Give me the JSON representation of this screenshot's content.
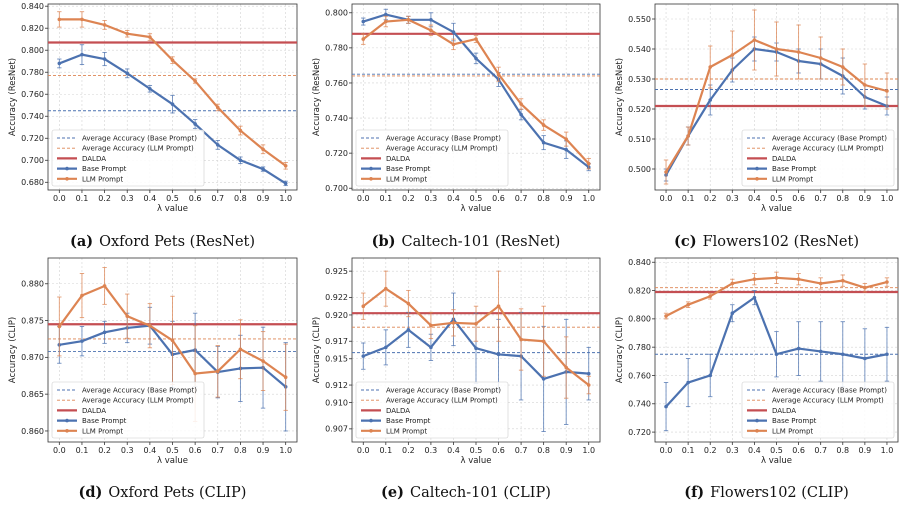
{
  "colors": {
    "base": "#4c72b0",
    "llm": "#dd8452",
    "dalda": "#c44e52",
    "grid": "#d3d3d3",
    "axis": "#333333"
  },
  "legend": {
    "avg_base": "Average Accuracy (Base Prompt)",
    "avg_llm": "Average Accuracy (LLM Prompt)",
    "dalda": "DALDA",
    "base": "Base Prompt",
    "llm": "LLM Prompt"
  },
  "chart_data": [
    {
      "type": "line",
      "caption_tag": "(a)",
      "caption_text": "Oxford Pets (ResNet)",
      "xlabel": "λ value",
      "ylabel": "Accuracy (ResNet)",
      "x": [
        0.0,
        0.1,
        0.2,
        0.3,
        0.4,
        0.5,
        0.6,
        0.7,
        0.8,
        0.9,
        1.0
      ],
      "x_ticks": [
        "0.0",
        "0.1",
        "0.2",
        "0.3",
        "0.4",
        "0.5",
        "0.6",
        "0.7",
        "0.8",
        "0.9",
        "1.0"
      ],
      "ylim": [
        0.673,
        0.842
      ],
      "y_ticks": [
        0.68,
        0.7,
        0.72,
        0.74,
        0.76,
        0.78,
        0.8,
        0.82,
        0.84
      ],
      "y_tick_labels": [
        "0.680",
        "0.700",
        "0.720",
        "0.740",
        "0.760",
        "0.780",
        "0.800",
        "0.820",
        "0.840"
      ],
      "dalda": 0.807,
      "avg_base": 0.745,
      "avg_llm": 0.777,
      "series": [
        {
          "name": "Base Prompt",
          "values": [
            0.788,
            0.796,
            0.792,
            0.779,
            0.765,
            0.751,
            0.733,
            0.714,
            0.7,
            0.692,
            0.679
          ],
          "err": [
            0.004,
            0.009,
            0.006,
            0.004,
            0.003,
            0.008,
            0.004,
            0.004,
            0.003,
            0.002,
            0.002
          ]
        },
        {
          "name": "LLM Prompt",
          "values": [
            0.828,
            0.828,
            0.823,
            0.815,
            0.812,
            0.791,
            0.772,
            0.748,
            0.727,
            0.71,
            0.695
          ],
          "err": [
            0.007,
            0.007,
            0.004,
            0.003,
            0.003,
            0.003,
            0.002,
            0.003,
            0.004,
            0.004,
            0.003
          ]
        }
      ],
      "legend_position": "lower-left"
    },
    {
      "type": "line",
      "caption_tag": "(b)",
      "caption_text": "Caltech-101 (ResNet)",
      "xlabel": "λ value",
      "ylabel": "Accuracy (ResNet)",
      "x": [
        0.0,
        0.1,
        0.2,
        0.3,
        0.4,
        0.5,
        0.6,
        0.7,
        0.8,
        0.9,
        1.0
      ],
      "x_ticks": [
        "0.0",
        "0.1",
        "0.2",
        "0.3",
        "0.4",
        "0.5",
        "0.6",
        "0.7",
        "0.8",
        "0.9",
        "1.0"
      ],
      "ylim": [
        0.699,
        0.805
      ],
      "y_ticks": [
        0.7,
        0.72,
        0.74,
        0.76,
        0.78,
        0.8
      ],
      "y_tick_labels": [
        "0.700",
        "0.720",
        "0.740",
        "0.760",
        "0.780",
        "0.800"
      ],
      "dalda": 0.788,
      "avg_base": 0.765,
      "avg_llm": 0.764,
      "series": [
        {
          "name": "Base Prompt",
          "values": [
            0.795,
            0.799,
            0.796,
            0.796,
            0.789,
            0.774,
            0.762,
            0.742,
            0.726,
            0.722,
            0.712
          ],
          "err": [
            0.002,
            0.003,
            0.002,
            0.004,
            0.005,
            0.003,
            0.004,
            0.003,
            0.004,
            0.005,
            0.002
          ]
        },
        {
          "name": "LLM Prompt",
          "values": [
            0.785,
            0.795,
            0.796,
            0.79,
            0.782,
            0.785,
            0.765,
            0.748,
            0.736,
            0.728,
            0.714
          ],
          "err": [
            0.003,
            0.003,
            0.002,
            0.003,
            0.003,
            0.002,
            0.004,
            0.003,
            0.003,
            0.004,
            0.003
          ]
        }
      ],
      "legend_position": "lower-left"
    },
    {
      "type": "line",
      "caption_tag": "(c)",
      "caption_text": "Flowers102 (ResNet)",
      "xlabel": "λ value",
      "ylabel": "Accuracy (ResNet)",
      "x": [
        0.0,
        0.1,
        0.2,
        0.3,
        0.4,
        0.5,
        0.6,
        0.7,
        0.8,
        0.9,
        1.0
      ],
      "x_ticks": [
        "0.0",
        "0.1",
        "0.2",
        "0.3",
        "0.4",
        "0.5",
        "0.6",
        "0.7",
        "0.8",
        "0.9",
        "1.0"
      ],
      "ylim": [
        0.493,
        0.555
      ],
      "y_ticks": [
        0.5,
        0.51,
        0.52,
        0.53,
        0.54,
        0.55
      ],
      "y_tick_labels": [
        "0.500",
        "0.510",
        "0.520",
        "0.530",
        "0.540",
        "0.550"
      ],
      "dalda": 0.521,
      "avg_base": 0.5265,
      "avg_llm": 0.53,
      "series": [
        {
          "name": "Base Prompt",
          "values": [
            0.498,
            0.511,
            0.523,
            0.533,
            0.54,
            0.539,
            0.536,
            0.535,
            0.531,
            0.524,
            0.521
          ],
          "err": [
            0.002,
            0.003,
            0.005,
            0.004,
            0.004,
            0.003,
            0.004,
            0.005,
            0.006,
            0.004,
            0.003
          ]
        },
        {
          "name": "LLM Prompt",
          "values": [
            0.499,
            0.511,
            0.534,
            0.538,
            0.543,
            0.54,
            0.539,
            0.537,
            0.534,
            0.528,
            0.526
          ],
          "err": [
            0.004,
            0.003,
            0.007,
            0.008,
            0.01,
            0.009,
            0.009,
            0.007,
            0.006,
            0.007,
            0.006
          ]
        }
      ],
      "legend_position": "lower-right"
    },
    {
      "type": "line",
      "caption_tag": "(d)",
      "caption_text": "Oxford Pets (CLIP)",
      "xlabel": "λ value",
      "ylabel": "Accuracy (CLIP)",
      "x": [
        0.0,
        0.1,
        0.2,
        0.3,
        0.4,
        0.5,
        0.6,
        0.7,
        0.8,
        0.9,
        1.0
      ],
      "x_ticks": [
        "0.0",
        "0.1",
        "0.2",
        "0.3",
        "0.4",
        "0.5",
        "0.6",
        "0.7",
        "0.8",
        "0.9",
        "1.0"
      ],
      "ylim": [
        0.8585,
        0.8835
      ],
      "y_ticks": [
        0.86,
        0.865,
        0.87,
        0.875,
        0.88
      ],
      "y_tick_labels": [
        "0.860",
        "0.865",
        "0.870",
        "0.875",
        "0.880"
      ],
      "dalda": 0.8745,
      "avg_base": 0.8708,
      "avg_llm": 0.8725,
      "series": [
        {
          "name": "Base Prompt",
          "values": [
            0.8717,
            0.8722,
            0.8734,
            0.874,
            0.8743,
            0.8704,
            0.871,
            0.868,
            0.8685,
            0.8686,
            0.866
          ],
          "err": [
            0.0025,
            0.002,
            0.0015,
            0.002,
            0.0025,
            0.0045,
            0.005,
            0.0035,
            0.0045,
            0.0055,
            0.006
          ]
        },
        {
          "name": "LLM Prompt",
          "values": [
            0.8742,
            0.8784,
            0.8797,
            0.8756,
            0.8743,
            0.8723,
            0.8678,
            0.8681,
            0.8711,
            0.8695,
            0.8673
          ],
          "err": [
            0.004,
            0.003,
            0.0025,
            0.003,
            0.003,
            0.006,
            0.0065,
            0.0035,
            0.004,
            0.004,
            0.0045
          ]
        }
      ],
      "legend_position": "lower-left"
    },
    {
      "type": "line",
      "caption_tag": "(e)",
      "caption_text": "Caltech-101 (CLIP)",
      "xlabel": "λ value",
      "ylabel": "Accuracy (CLIP)",
      "x": [
        0.0,
        0.1,
        0.2,
        0.3,
        0.4,
        0.5,
        0.6,
        0.7,
        0.8,
        0.9,
        1.0
      ],
      "x_ticks": [
        "0.0",
        "0.1",
        "0.2",
        "0.3",
        "0.4",
        "0.5",
        "0.6",
        "0.7",
        "0.8",
        "0.9",
        "1.0"
      ],
      "ylim": [
        0.9055,
        0.9265
      ],
      "y_ticks": [
        0.907,
        0.91,
        0.912,
        0.915,
        0.917,
        0.92,
        0.922,
        0.925
      ],
      "y_tick_labels": [
        "0.907",
        "0.910",
        "0.912",
        "0.915",
        "0.917",
        "0.920",
        "0.922",
        "0.925"
      ],
      "dalda": 0.9202,
      "avg_base": 0.9157,
      "avg_llm": 0.9186,
      "series": [
        {
          "name": "Base Prompt",
          "values": [
            0.9153,
            0.9163,
            0.9183,
            0.9163,
            0.9195,
            0.9162,
            0.9155,
            0.9153,
            0.9127,
            0.9135,
            0.9133
          ],
          "err": [
            0.0015,
            0.002,
            0.002,
            0.0015,
            0.003,
            0.004,
            0.004,
            0.005,
            0.006,
            0.006,
            0.003
          ]
        },
        {
          "name": "LLM Prompt",
          "values": [
            0.921,
            0.923,
            0.9213,
            0.9188,
            0.9191,
            0.919,
            0.921,
            0.9172,
            0.917,
            0.914,
            0.912
          ],
          "err": [
            0.0015,
            0.002,
            0.0015,
            0.0015,
            0.0015,
            0.002,
            0.004,
            0.0035,
            0.004,
            0.0035,
            0.001
          ]
        }
      ],
      "legend_position": "lower-left"
    },
    {
      "type": "line",
      "caption_tag": "(f)",
      "caption_text": "Flowers102 (CLIP)",
      "xlabel": "λ value",
      "ylabel": "Accuracy (CLIP)",
      "x": [
        0.0,
        0.1,
        0.2,
        0.3,
        0.4,
        0.5,
        0.6,
        0.7,
        0.8,
        0.9,
        1.0
      ],
      "x_ticks": [
        "0.0",
        "0.1",
        "0.2",
        "0.3",
        "0.4",
        "0.5",
        "0.6",
        "0.7",
        "0.8",
        "0.9",
        "1.0"
      ],
      "ylim": [
        0.713,
        0.843
      ],
      "y_ticks": [
        0.72,
        0.74,
        0.76,
        0.78,
        0.8,
        0.82,
        0.84
      ],
      "y_tick_labels": [
        "0.720",
        "0.740",
        "0.760",
        "0.780",
        "0.800",
        "0.820",
        "0.840"
      ],
      "dalda": 0.819,
      "avg_base": 0.775,
      "avg_llm": 0.822,
      "series": [
        {
          "name": "Base Prompt",
          "values": [
            0.738,
            0.755,
            0.76,
            0.804,
            0.815,
            0.775,
            0.779,
            0.777,
            0.775,
            0.772,
            0.775
          ],
          "err": [
            0.017,
            0.017,
            0.015,
            0.006,
            0.005,
            0.016,
            0.019,
            0.021,
            0.023,
            0.021,
            0.019
          ]
        },
        {
          "name": "LLM Prompt",
          "values": [
            0.802,
            0.81,
            0.816,
            0.825,
            0.828,
            0.829,
            0.828,
            0.825,
            0.827,
            0.822,
            0.826
          ],
          "err": [
            0.002,
            0.002,
            0.002,
            0.003,
            0.004,
            0.004,
            0.004,
            0.004,
            0.004,
            0.003,
            0.003
          ]
        }
      ],
      "legend_position": "lower-right"
    }
  ]
}
